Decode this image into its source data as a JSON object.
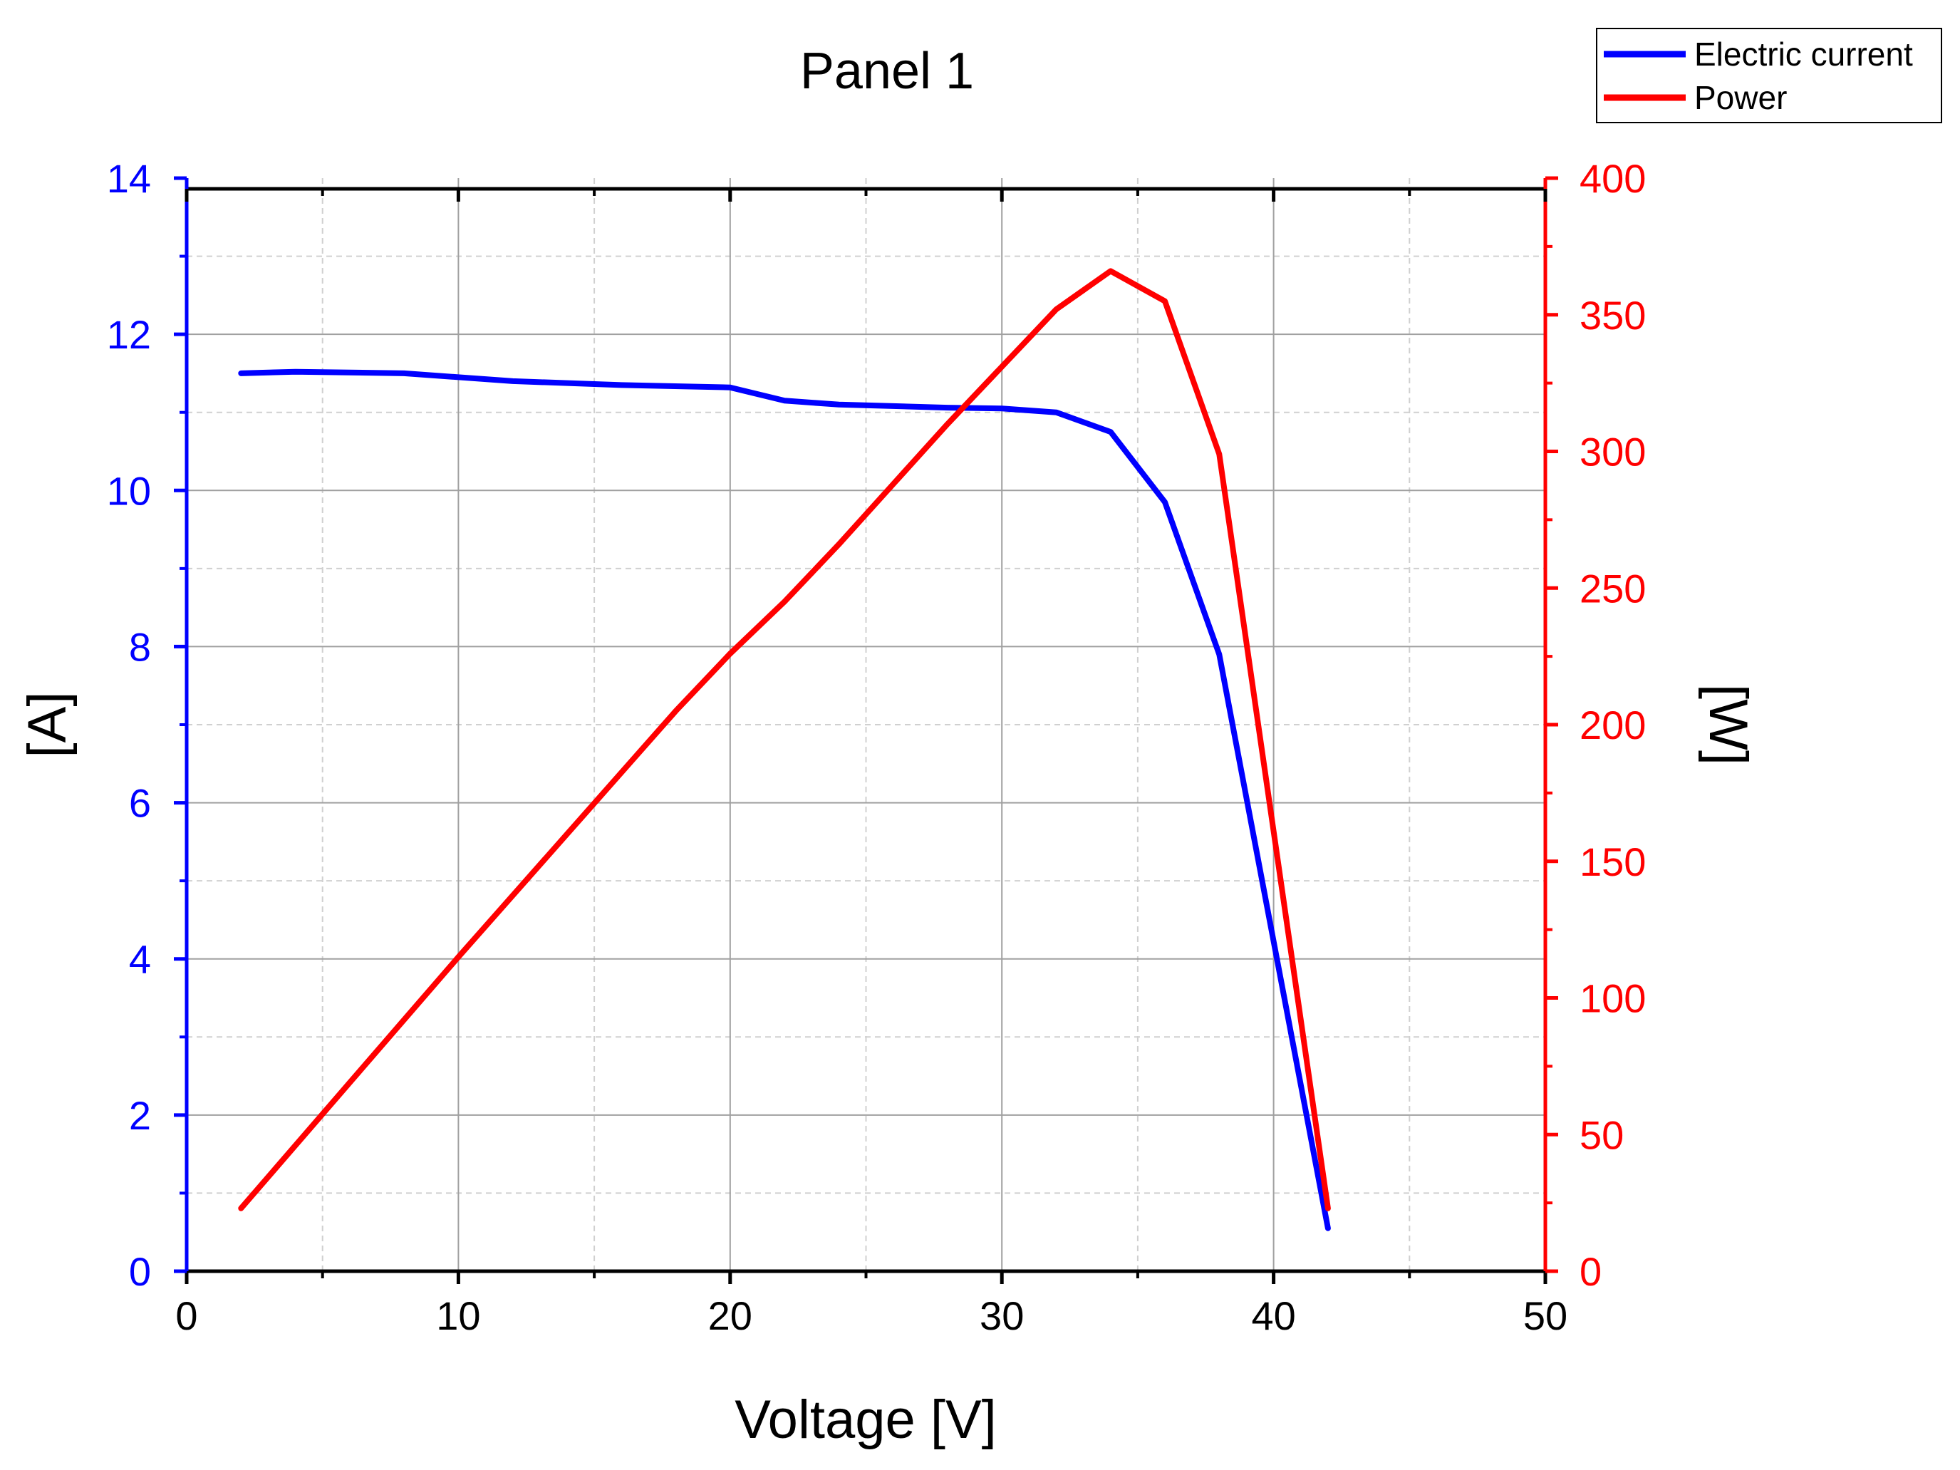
{
  "chart_data": {
    "type": "line",
    "title": "Panel 1",
    "xlabel": "Voltage [V]",
    "ylabel_left": "[A]",
    "ylabel_right": "[W]",
    "xlim": [
      0,
      50
    ],
    "ylim_left": [
      0,
      14
    ],
    "ylim_right": [
      0,
      400
    ],
    "x_ticks": [
      "0",
      "10",
      "20",
      "30",
      "40",
      "50"
    ],
    "y_left_ticks": [
      "0",
      "2",
      "4",
      "6",
      "8",
      "10",
      "12",
      "14"
    ],
    "y_right_ticks": [
      "0",
      "50",
      "100",
      "150",
      "200",
      "250",
      "300",
      "350",
      "400"
    ],
    "grid": true,
    "legend_position": "top-right",
    "colors": {
      "current": "#0000ff",
      "power": "#ff0000",
      "axis": "#000000",
      "grid_major": "#a0a0a0",
      "grid_minor": "#d0d0d0"
    },
    "series": [
      {
        "name": "Electric current",
        "axis": "left",
        "x": [
          2,
          4,
          8,
          12,
          16,
          20,
          22,
          24,
          26,
          28,
          30,
          32,
          34,
          36,
          38,
          42
        ],
        "values": [
          11.5,
          11.52,
          11.5,
          11.4,
          11.35,
          11.32,
          11.15,
          11.1,
          11.08,
          11.06,
          11.05,
          11.0,
          10.75,
          9.85,
          7.9,
          0.55
        ]
      },
      {
        "name": "Power",
        "axis": "right",
        "x": [
          2,
          6,
          10,
          14,
          18,
          20,
          22,
          24,
          26,
          28,
          30,
          32,
          34,
          36,
          38,
          42
        ],
        "values": [
          23,
          69,
          115,
          160,
          205,
          226,
          245,
          266,
          288,
          310,
          331,
          352,
          366,
          355,
          299,
          23
        ]
      }
    ]
  }
}
